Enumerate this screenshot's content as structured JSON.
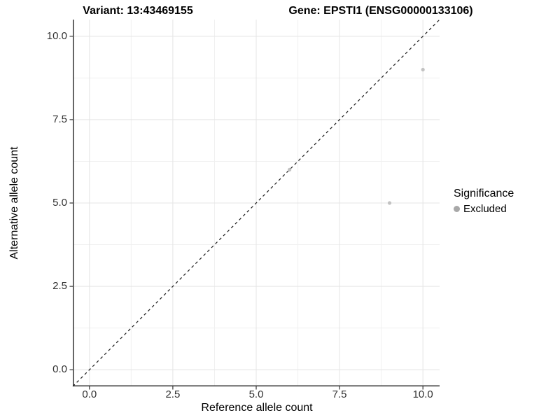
{
  "chart_data": {
    "type": "scatter",
    "title_variant": "Variant: 13:43469155",
    "title_gene": "Gene: EPSTI1 (ENSG00000133106)",
    "xlabel": "Reference allele count",
    "ylabel": "Alternative allele count",
    "xlim": [
      -0.5,
      10.5
    ],
    "ylim": [
      -0.5,
      10.5
    ],
    "xticks": {
      "values": [
        0,
        2.5,
        5,
        7.5,
        10
      ],
      "labels": [
        "0.0",
        "2.5",
        "5.0",
        "7.5",
        "10.0"
      ]
    },
    "yticks": {
      "values": [
        0,
        2.5,
        5,
        7.5,
        10
      ],
      "labels": [
        "0.0",
        "2.5",
        "5.0",
        "7.5",
        "10.0"
      ]
    },
    "minor_breaks": [
      1.25,
      3.75,
      6.25,
      8.75
    ],
    "grid": "major+minor",
    "identity_line": {
      "style": "dashed",
      "equation": "y = x",
      "color": "#1a1a1a"
    },
    "series": [
      {
        "name": "Excluded",
        "color": "#c2c2c2",
        "points": [
          {
            "x": 6,
            "y": 6
          },
          {
            "x": 9,
            "y": 5
          },
          {
            "x": 10,
            "y": 9
          }
        ]
      }
    ],
    "legend": {
      "title": "Significance",
      "position": "right",
      "items": [
        {
          "label": "Excluded",
          "color": "#a8a8a8"
        }
      ]
    },
    "colors": {
      "grid_major": "#e4e4e4",
      "grid_minor": "#f0f0f0",
      "axis": "#333333",
      "tick_text": "#303030",
      "background": "#ffffff"
    }
  }
}
